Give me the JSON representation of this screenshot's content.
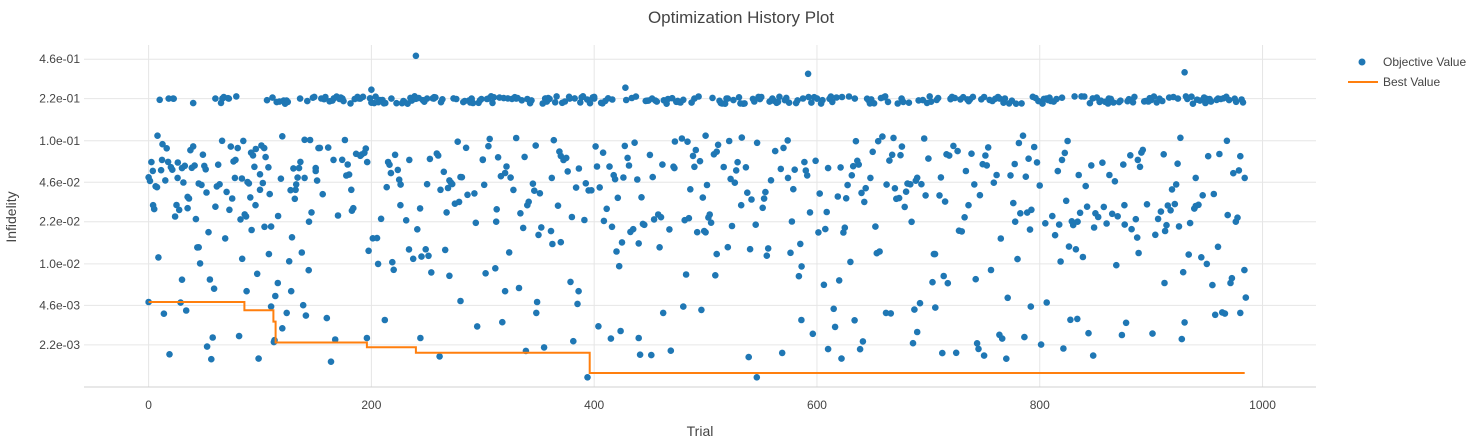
{
  "chart_data": {
    "type": "scatter",
    "title": "Optimization History Plot",
    "xlabel": "Trial",
    "ylabel": "Infidelity",
    "xlim": [
      -58,
      1048
    ],
    "y_scale": "log",
    "ylim": [
      0.001,
      0.6
    ],
    "x_ticks": [
      0,
      200,
      400,
      600,
      800,
      1000
    ],
    "x_tick_labels": [
      "0",
      "200",
      "400",
      "600",
      "800",
      "1000"
    ],
    "y_ticks": [
      0.0022,
      0.0046,
      0.01,
      0.022,
      0.046,
      0.1,
      0.22,
      0.46
    ],
    "y_tick_labels": [
      "2.2e-03",
      "4.6e-03",
      "1.0e-02",
      "2.2e-02",
      "4.6e-02",
      "1.0e-01",
      "2.2e-01",
      "4.6e-01"
    ],
    "grid": true,
    "legend_position": "top-right",
    "colors": {
      "objective": "#1f77b4",
      "best": "#ff7f0e"
    },
    "series": [
      {
        "name": "Objective Value",
        "mode": "markers",
        "x": [
          0,
          4,
          8,
          12,
          18,
          22,
          26,
          30,
          35,
          40,
          45,
          52,
          60,
          66,
          72,
          78,
          84,
          88,
          92,
          96,
          100,
          104,
          108,
          110,
          113,
          116,
          120,
          124,
          128,
          132,
          136,
          140,
          144,
          150,
          158,
          166,
          174,
          182,
          190,
          196,
          200,
          206,
          212,
          218,
          226,
          234,
          240,
          244,
          250,
          256,
          262,
          270,
          280,
          290,
          300,
          305,
          312,
          320,
          330,
          340,
          348,
          356,
          362,
          370,
          378,
          386,
          394,
          400,
          408,
          416,
          428,
          440,
          452,
          462,
          472,
          480,
          490,
          500,
          510,
          520,
          532,
          546,
          560,
          574,
          586,
          592,
          600,
          610,
          622,
          634,
          648,
          662,
          676,
          690,
          706,
          720,
          736,
          750,
          764,
          778,
          792,
          806,
          820,
          834,
          848,
          862,
          876,
          888,
          900,
          912,
          924,
          930,
          940,
          950,
          960,
          968,
          976,
          980,
          984
        ],
        "y": [
          0.0049,
          0.03,
          0.11,
          0.07,
          0.22,
          0.22,
          0.05,
          0.06,
          0.035,
          0.09,
          0.045,
          0.038,
          0.22,
          0.1,
          0.22,
          0.07,
          0.011,
          0.006,
          0.08,
          0.03,
          0.04,
          0.02,
          0.012,
          0.0045,
          0.0024,
          0.007,
          0.003,
          0.004,
          0.006,
          0.04,
          0.22,
          0.05,
          0.022,
          0.06,
          0.22,
          0.07,
          0.22,
          0.04,
          0.22,
          0.0025,
          0.26,
          0.01,
          0.0035,
          0.22,
          0.03,
          0.07,
          0.49,
          0.0025,
          0.22,
          0.22,
          0.04,
          0.008,
          0.005,
          0.22,
          0.07,
          0.22,
          0.022,
          0.006,
          0.22,
          0.03,
          0.004,
          0.22,
          0.05,
          0.015,
          0.22,
          0.006,
          0.0012,
          0.22,
          0.08,
          0.02,
          0.27,
          0.0025,
          0.22,
          0.004,
          0.06,
          0.0045,
          0.22,
          0.11,
          0.012,
          0.22,
          0.03,
          0.0012,
          0.22,
          0.05,
          0.0035,
          0.35,
          0.22,
          0.06,
          0.0017,
          0.22,
          0.05,
          0.004,
          0.22,
          0.0028,
          0.012,
          0.22,
          0.03,
          0.0018,
          0.22,
          0.022,
          0.0045,
          0.22,
          0.07,
          0.022,
          0.0018,
          0.22,
          0.03,
          0.07,
          0.22,
          0.007,
          0.22,
          0.36,
          0.05,
          0.01,
          0.22,
          0.1,
          0.022,
          0.004,
          0.05
        ],
        "note_density": "dense"
      },
      {
        "name": "Best Value",
        "mode": "lines-steps",
        "x": [
          0,
          86,
          86,
          112,
          112,
          114,
          114,
          196,
          196,
          240,
          240,
          396,
          396,
          984
        ],
        "y": [
          0.0049,
          0.0049,
          0.0042,
          0.0042,
          0.0034,
          0.0034,
          0.0023,
          0.0023,
          0.0021,
          0.0021,
          0.0019,
          0.0019,
          0.0013,
          0.0013
        ]
      }
    ]
  }
}
